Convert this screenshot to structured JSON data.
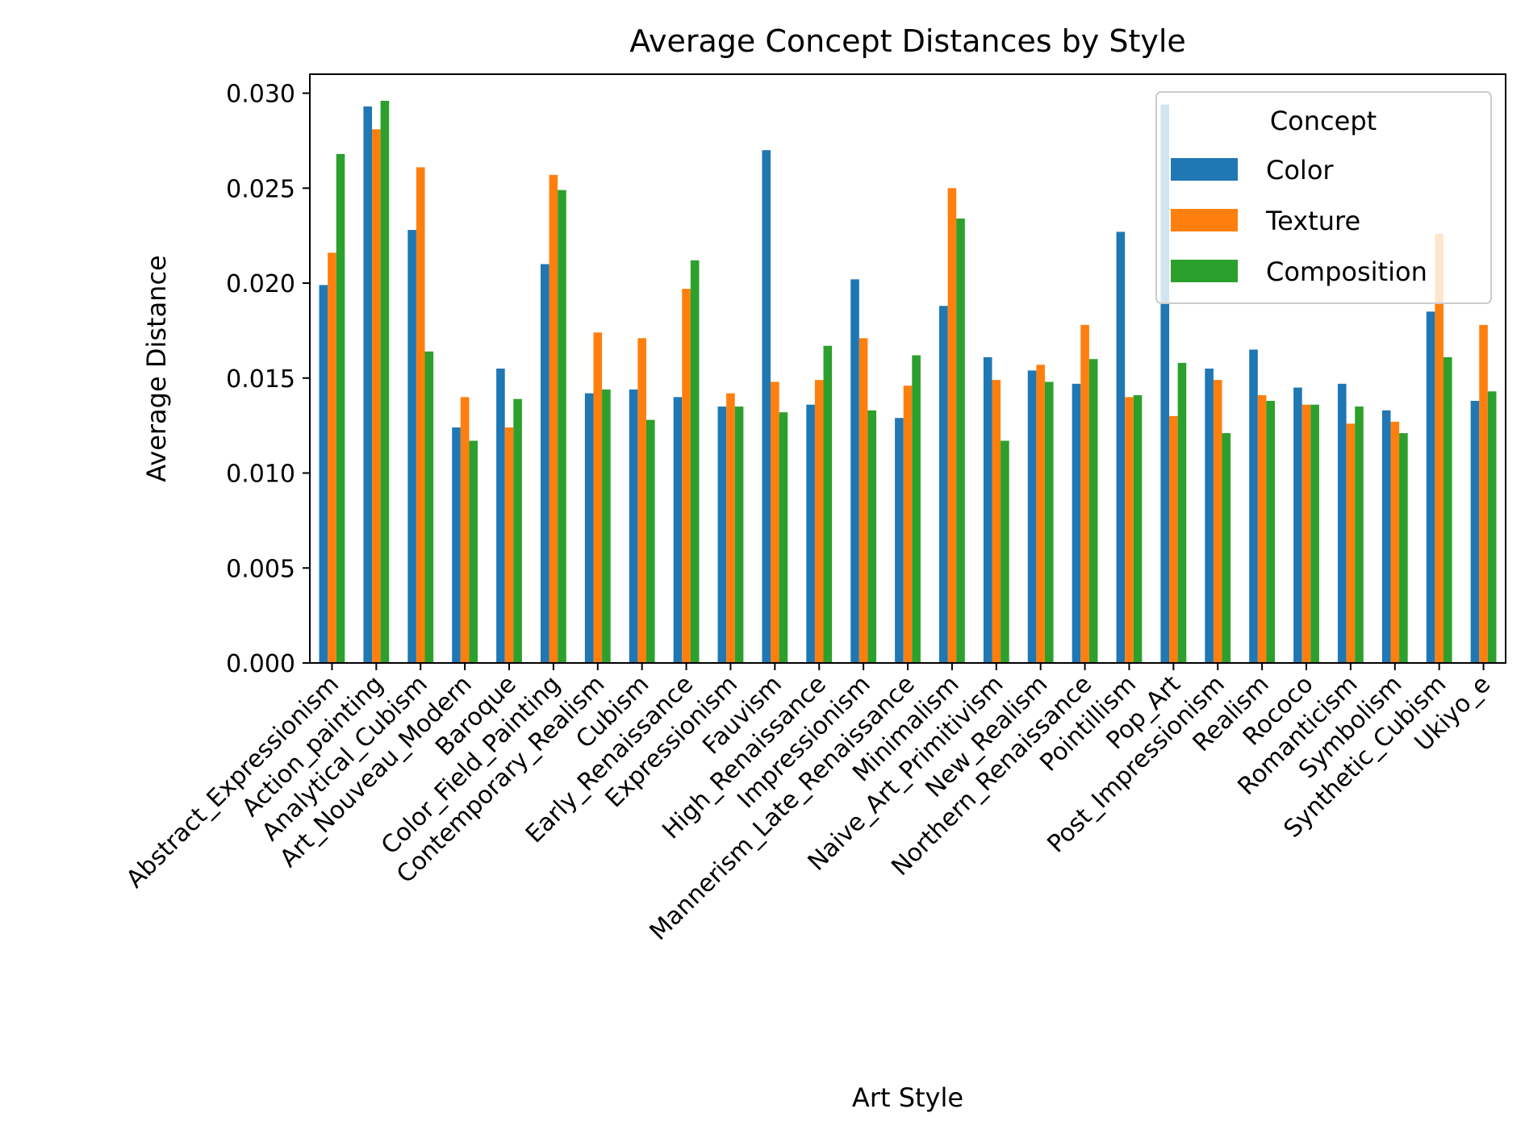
{
  "chart_data": {
    "type": "bar",
    "title": "Average Concept Distances by Style",
    "xlabel": "Art Style",
    "ylabel": "Average Distance",
    "ylim": [
      0,
      0.031
    ],
    "yticks": [
      0.0,
      0.005,
      0.01,
      0.015,
      0.02,
      0.025,
      0.03
    ],
    "ytick_labels": [
      "0.000",
      "0.005",
      "0.010",
      "0.015",
      "0.020",
      "0.025",
      "0.030"
    ],
    "grid": false,
    "legend": {
      "title": "Concept",
      "placement": "top-right"
    },
    "categories": [
      "Abstract_Expressionism",
      "Action_painting",
      "Analytical_Cubism",
      "Art_Nouveau_Modern",
      "Baroque",
      "Color_Field_Painting",
      "Contemporary_Realism",
      "Cubism",
      "Early_Renaissance",
      "Expressionism",
      "Fauvism",
      "High_Renaissance",
      "Impressionism",
      "Mannerism_Late_Renaissance",
      "Minimalism",
      "Naive_Art_Primitivism",
      "New_Realism",
      "Northern_Renaissance",
      "Pointillism",
      "Pop_Art",
      "Post_Impressionism",
      "Realism",
      "Rococo",
      "Romanticism",
      "Symbolism",
      "Synthetic_Cubism",
      "Ukiyo_e"
    ],
    "series": [
      {
        "name": "Color",
        "color": "#1f77b4",
        "values": [
          0.0199,
          0.0293,
          0.0228,
          0.0124,
          0.0155,
          0.021,
          0.0142,
          0.0144,
          0.014,
          0.0135,
          0.027,
          0.0136,
          0.0202,
          0.0129,
          0.0188,
          0.0161,
          0.0154,
          0.0147,
          0.0227,
          0.0294,
          0.0155,
          0.0165,
          0.0145,
          0.0147,
          0.0133,
          0.0185,
          0.0138
        ]
      },
      {
        "name": "Texture",
        "color": "#ff7f0e",
        "values": [
          0.0216,
          0.0281,
          0.0261,
          0.014,
          0.0124,
          0.0257,
          0.0174,
          0.0171,
          0.0197,
          0.0142,
          0.0148,
          0.0149,
          0.0171,
          0.0146,
          0.025,
          0.0149,
          0.0157,
          0.0178,
          0.014,
          0.013,
          0.0149,
          0.0141,
          0.0136,
          0.0126,
          0.0127,
          0.0226,
          0.0178
        ]
      },
      {
        "name": "Composition",
        "color": "#2ca02c",
        "values": [
          0.0268,
          0.0296,
          0.0164,
          0.0117,
          0.0139,
          0.0249,
          0.0144,
          0.0128,
          0.0212,
          0.0135,
          0.0132,
          0.0167,
          0.0133,
          0.0162,
          0.0234,
          0.0117,
          0.0148,
          0.016,
          0.0141,
          0.0158,
          0.0121,
          0.0138,
          0.0136,
          0.0135,
          0.0121,
          0.0161,
          0.0143
        ]
      }
    ]
  }
}
